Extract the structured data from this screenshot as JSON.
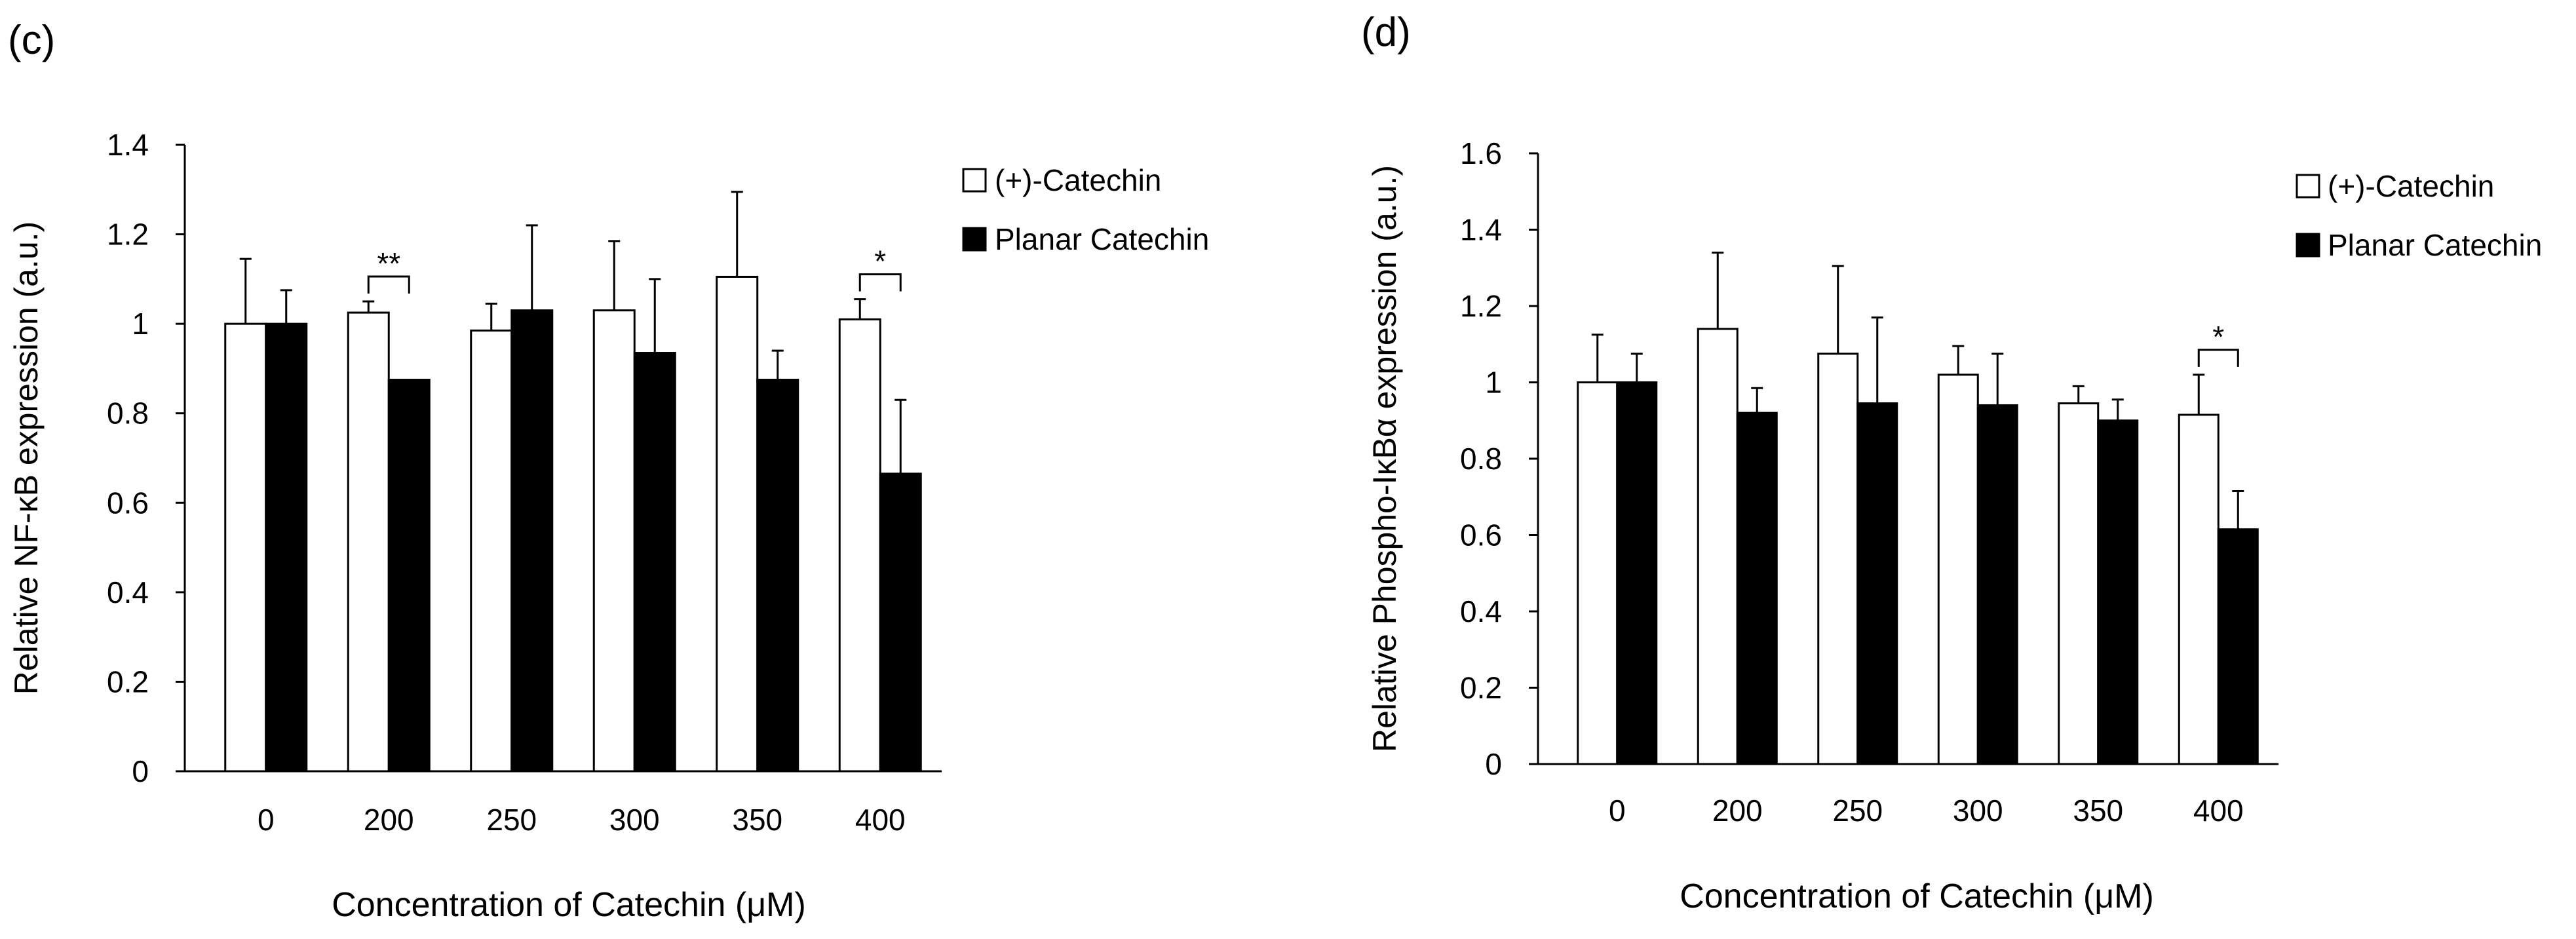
{
  "chart_data": [
    {
      "panel_label": "(c)",
      "type": "bar",
      "categories": [
        "0",
        "200",
        "250",
        "300",
        "350",
        "400"
      ],
      "xlabel": "Concentration of Catechin (μM)",
      "ylabel": "Relative NF-κB expression (a.u.)",
      "ylim": [
        0,
        1.4
      ],
      "yticks": [
        0,
        0.2,
        0.4,
        0.6,
        0.8,
        1,
        1.2,
        1.4
      ],
      "ytick_labels": [
        "0",
        "0.2",
        "0.4",
        "0.6",
        "0.8",
        "1",
        "1.2",
        "1.4"
      ],
      "grid": false,
      "legend_position": "top-right",
      "series": [
        {
          "name": "(+)-Catechin",
          "fill": "#ffffff",
          "values": [
            1.0,
            1.025,
            0.985,
            1.03,
            1.105,
            1.01
          ],
          "errors": [
            0.145,
            0.025,
            0.06,
            0.155,
            0.19,
            0.045
          ]
        },
        {
          "name": "Planar Catechin",
          "fill": "#000000",
          "values": [
            1.0,
            0.875,
            1.03,
            0.935,
            0.875,
            0.665
          ],
          "errors": [
            0.075,
            0.0,
            0.19,
            0.165,
            0.065,
            0.165
          ]
        }
      ],
      "significance": [
        {
          "category_index": 1,
          "label": "**"
        },
        {
          "category_index": 5,
          "label": "*"
        }
      ]
    },
    {
      "panel_label": "(d)",
      "type": "bar",
      "categories": [
        "0",
        "200",
        "250",
        "300",
        "350",
        "400"
      ],
      "xlabel": "Concentration of Catechin (μM)",
      "ylabel": "Relative Phospho-IκBα expression (a.u.)",
      "ylim": [
        0,
        1.6
      ],
      "yticks": [
        0,
        0.2,
        0.4,
        0.6,
        0.8,
        1,
        1.2,
        1.4,
        1.6
      ],
      "ytick_labels": [
        "0",
        "0.2",
        "0.4",
        "0.6",
        "0.8",
        "1",
        "1.2",
        "1.4",
        "1.6"
      ],
      "grid": false,
      "legend_position": "top-right",
      "series": [
        {
          "name": "(+)-Catechin",
          "fill": "#ffffff",
          "values": [
            1.0,
            1.14,
            1.075,
            1.02,
            0.945,
            0.915
          ],
          "errors": [
            0.125,
            0.2,
            0.23,
            0.075,
            0.045,
            0.105
          ]
        },
        {
          "name": "Planar Catechin",
          "fill": "#000000",
          "values": [
            1.0,
            0.92,
            0.945,
            0.94,
            0.9,
            0.615
          ],
          "errors": [
            0.075,
            0.065,
            0.225,
            0.135,
            0.055,
            0.1
          ]
        }
      ],
      "significance": [
        {
          "category_index": 5,
          "label": "*"
        }
      ]
    }
  ]
}
